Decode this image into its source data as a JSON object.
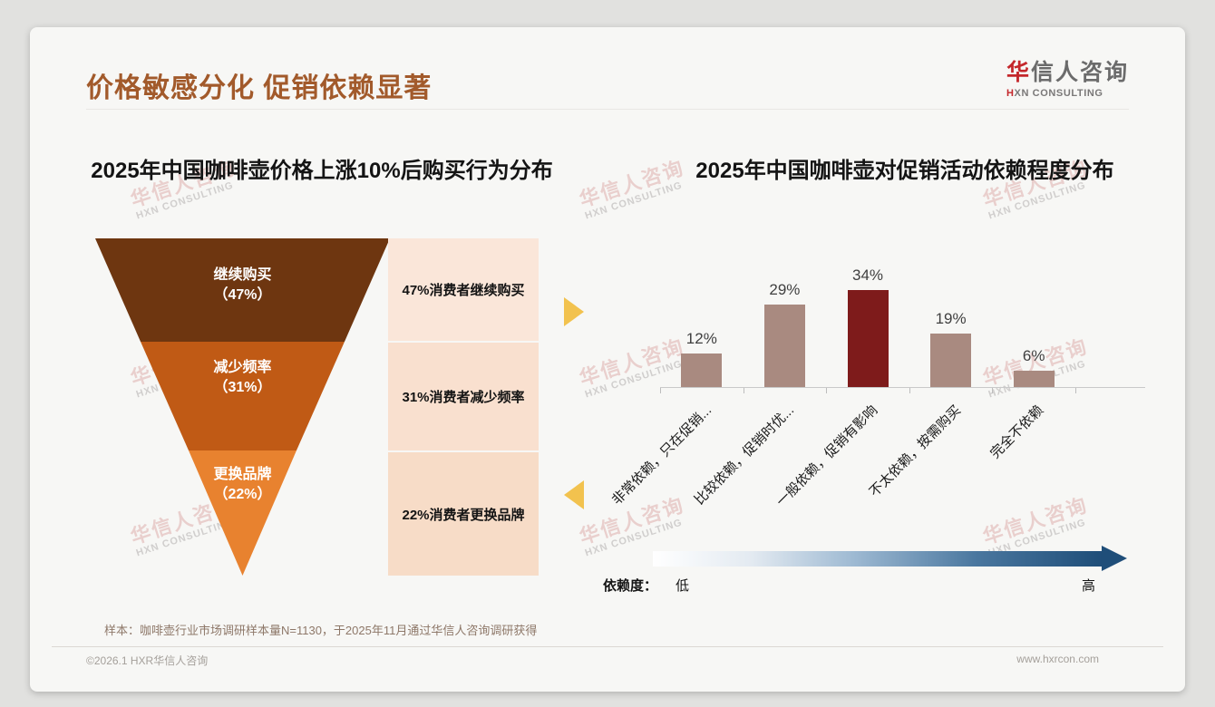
{
  "slide": {
    "title": "价格敏感分化 促销依赖显著",
    "title_color": "#A25A2B",
    "logo": {
      "cn_accent": "华",
      "cn_rest": "信人咨询",
      "en_accent": "H",
      "en_rest": "XN CONSULTING",
      "accent_color": "#C4272B"
    },
    "note": "样本：咖啡壶行业市场调研样本量N=1130，于2025年11月通过华信人咨询调研获得",
    "footer_left": "©2026.1 HXR华信人咨询",
    "footer_right": "www.hxrcon.com",
    "watermark": {
      "cn": "华信人咨询",
      "en": "HXN CONSULTING"
    }
  },
  "chart_data": [
    {
      "type": "funnel",
      "title": "2025年中国咖啡壶价格上涨10%后购买行为分布",
      "categories": [
        "继续购买",
        "减少频率",
        "更换品牌"
      ],
      "values": [
        47,
        31,
        22
      ],
      "stage_value_labels": [
        "（47%）",
        "（31%）",
        "（22%）"
      ],
      "annotations": [
        "47%消费者继续购买",
        "31%消费者减少频率",
        "22%消费者更换品牌"
      ],
      "colors": [
        "#6E3610",
        "#C05A15",
        "#E8822F"
      ],
      "annotation_bg_colors": [
        "#FAE6D9",
        "#F9E0CF",
        "#F7DCC7"
      ],
      "side_arrow_color": "#F2C24E"
    },
    {
      "type": "bar",
      "title": "2025年中国咖啡壶对促销活动依赖程度分布",
      "categories": [
        "非常依赖，只在促销...",
        "比较依赖，促销时优...",
        "一般依赖，促销有影响",
        "不太依赖，按需购买",
        "完全不依赖"
      ],
      "values": [
        12,
        29,
        34,
        19,
        6
      ],
      "data_labels": [
        "12%",
        "29%",
        "34%",
        "19%",
        "6%"
      ],
      "bar_color": "#A98A80",
      "highlight_color": "#7E1B1B",
      "highlight_index": 2,
      "ylim": [
        0,
        40
      ],
      "grid": false,
      "legend_position": "none",
      "dependency_legend": {
        "label": "依赖度：",
        "low": "低",
        "high": "高",
        "gradient_from": "#FFFFFF",
        "gradient_to": "#1F4E79"
      }
    }
  ]
}
